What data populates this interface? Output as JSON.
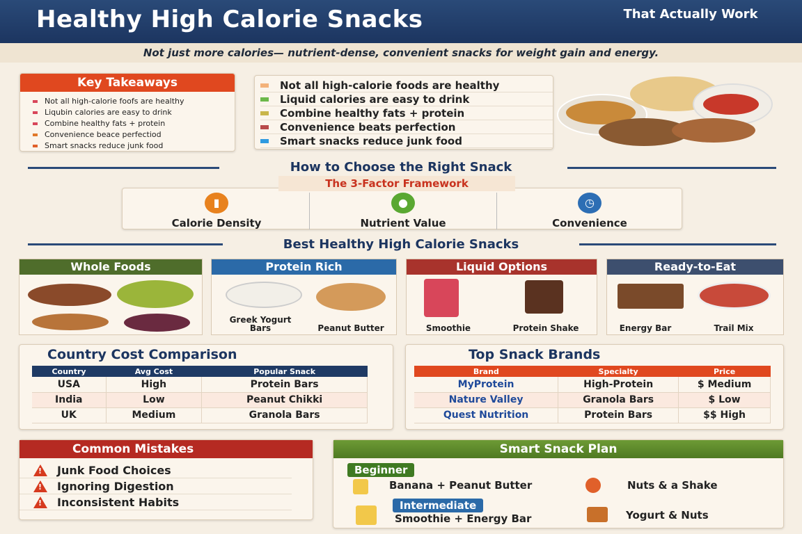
{
  "header": {
    "title": "Healthy High Calorie Snacks",
    "title_suffix": "That Actually Work"
  },
  "subtitle": "Not just more calories— nutrient-dense, convenient snacks for weight gain and energy.",
  "key_takeaways": {
    "title": "Key Takeaways",
    "items": [
      "Not all high-calorie foofs are healthy",
      "Liqubin calories are easy to drink",
      "Combine healthy fats + protein",
      "Convenience beace perfectiod",
      "Smart snacks reduce junk food"
    ]
  },
  "highlights": {
    "items": [
      {
        "text": "Not all high-calorie foods are healthy",
        "color": "#f3b27a"
      },
      {
        "text": "Liquid calories are easy to drink",
        "color": "#6bb84a"
      },
      {
        "text": "Combine healthy fats + protein",
        "color": "#c9b54a"
      },
      {
        "text": "Convenience beats perfection",
        "color": "#b84a4a"
      },
      {
        "text": "Smart snacks reduce junk food",
        "color": "#2f9ae0"
      }
    ]
  },
  "choose": {
    "title": "How to Choose the Right Snack",
    "framework_label": "The 3-Factor Framework",
    "factors": [
      {
        "label": "Calorie Density",
        "icon": "fire-icon",
        "color": "#e8821e"
      },
      {
        "label": "Nutrient Value",
        "icon": "leaf-drop-icon",
        "color": "#5aa832"
      },
      {
        "label": "Convenience",
        "icon": "clock-icon",
        "color": "#2d6eb4"
      }
    ]
  },
  "best": {
    "title": "Best Healthy High Calorie Snacks",
    "cards": [
      {
        "title": "Whole Foods",
        "color": "#4f6d2b",
        "labels": []
      },
      {
        "title": "Protein Rich",
        "color": "#2b6aa8",
        "labels": [
          "Greek Yogurt Bars",
          "Peanut Butter"
        ]
      },
      {
        "title": "Liquid Options",
        "color": "#a8332c",
        "labels": [
          "Smoothie",
          "Protein Shake"
        ]
      },
      {
        "title": "Ready-to-Eat",
        "color": "#3d4f6e",
        "labels": [
          "Energy Bar",
          "Trail Mix"
        ]
      }
    ]
  },
  "country_table": {
    "title": "Country Cost Comparison",
    "headers": [
      "Country",
      "Avg Cost",
      "Popular Snack"
    ],
    "rows": [
      [
        "USA",
        "High",
        "Protein Bars"
      ],
      [
        "India",
        "Low",
        "Peanut Chikki"
      ],
      [
        "UK",
        "Medium",
        "Granola Bars"
      ]
    ]
  },
  "brands_table": {
    "title": "Top Snack Brands",
    "headers": [
      "Brand",
      "Specialty",
      "Price"
    ],
    "rows": [
      [
        "MyProtein",
        "High-Protein",
        "$  Medium"
      ],
      [
        "Nature Valley",
        "Granola Bars",
        "$   Low"
      ],
      [
        "Quest Nutrition",
        "Protein Bars",
        "$$  High"
      ]
    ]
  },
  "mistakes": {
    "title": "Common Mistakes",
    "items": [
      "Junk Food Choices",
      "Ignoring Digestion",
      "Inconsistent Habits"
    ]
  },
  "plan": {
    "title": "Smart Snack Plan",
    "levels": [
      {
        "label": "Beginner",
        "items": [
          "Banana + Peanut Butter",
          "Nuts & a Shake"
        ]
      },
      {
        "label": "Intermediate",
        "items": [
          "Smoothie + Energy Bar",
          "Yogurt & Nuts"
        ]
      }
    ]
  }
}
